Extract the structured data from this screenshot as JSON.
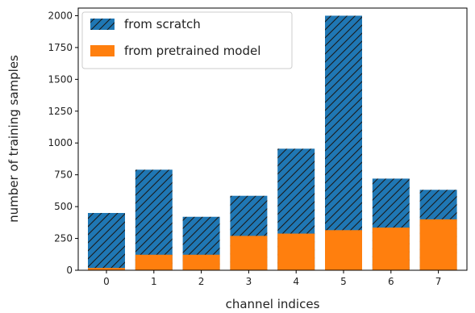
{
  "chart_data": {
    "type": "bar",
    "title": "",
    "xlabel": "channel indices",
    "ylabel": "number of training samples",
    "categories": [
      "0",
      "1",
      "2",
      "3",
      "4",
      "5",
      "6",
      "7"
    ],
    "ylim": [
      0,
      2060
    ],
    "yticks": [
      0,
      250,
      500,
      750,
      1000,
      1250,
      1500,
      1750,
      2000
    ],
    "grid": false,
    "legend_position": "top-left",
    "series": [
      {
        "name": "from scratch",
        "color": "#1f77b4",
        "hatch": "diagonal",
        "values": [
          450,
          790,
          420,
          585,
          955,
          2000,
          720,
          632
        ]
      },
      {
        "name": "from pretrained model",
        "color": "#ff7f0e",
        "hatch": "none",
        "values": [
          18,
          122,
          122,
          270,
          288,
          315,
          335,
          400
        ]
      }
    ]
  }
}
